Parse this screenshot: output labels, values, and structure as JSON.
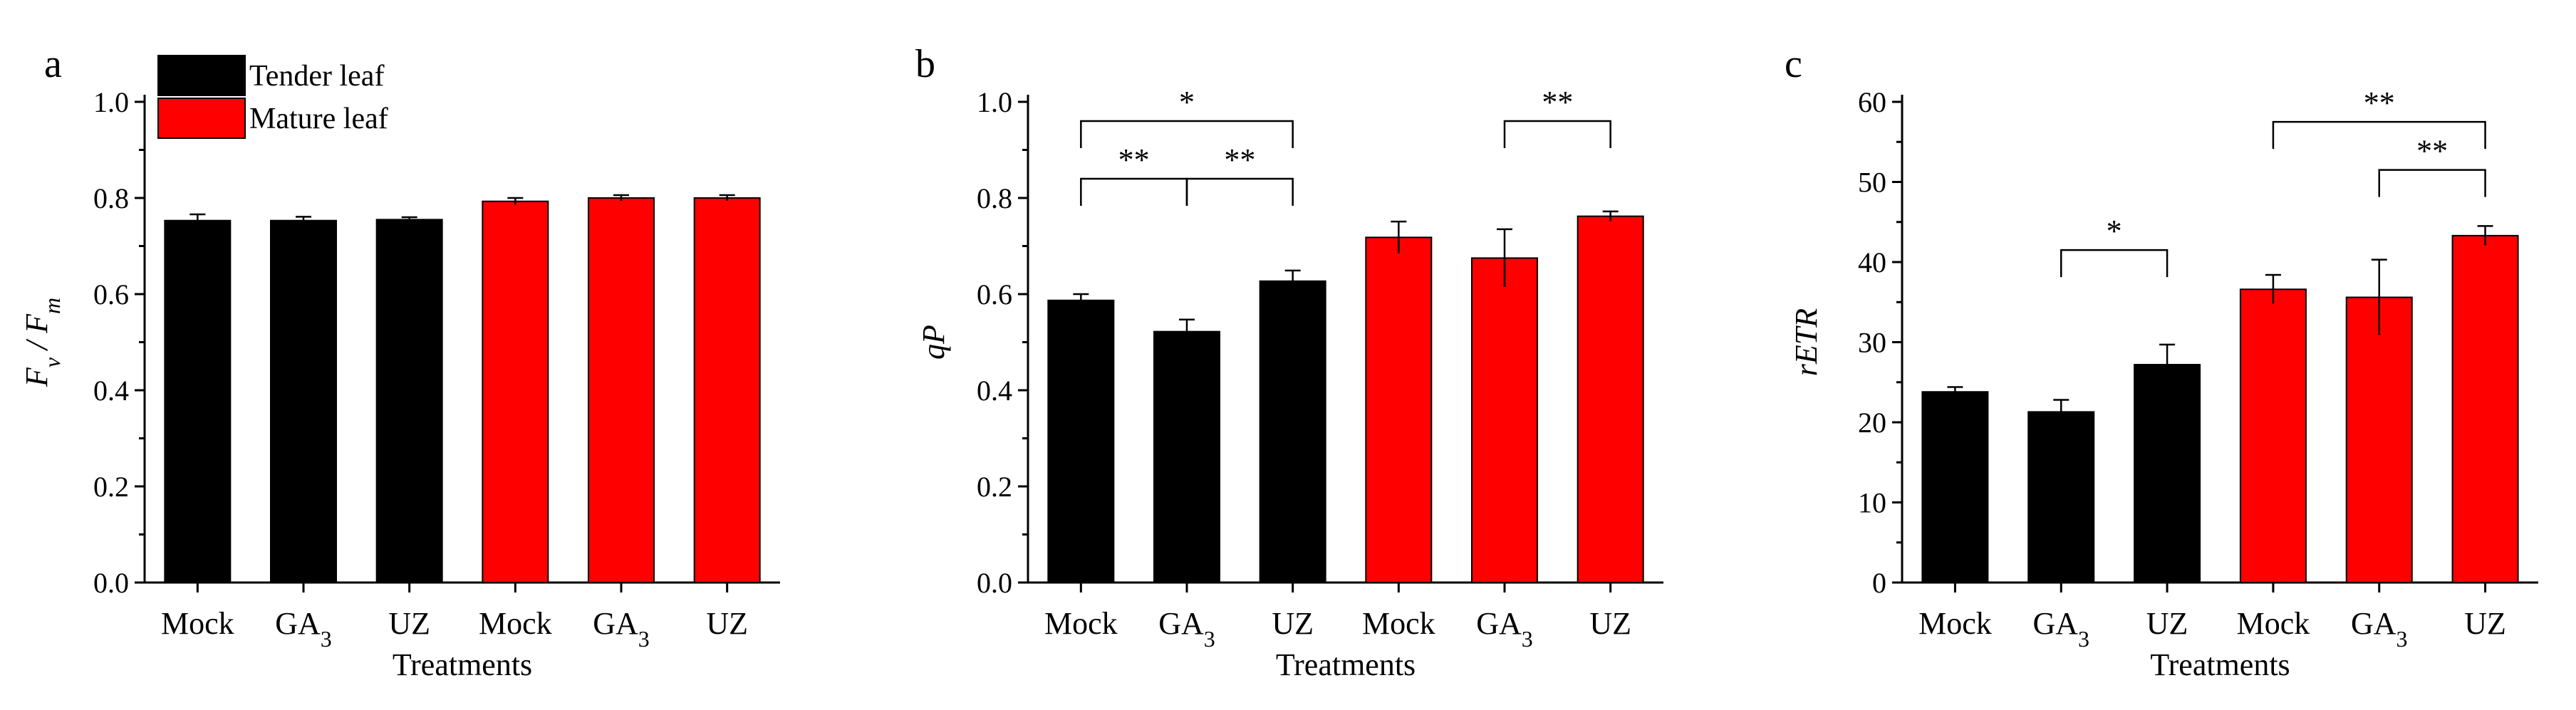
{
  "figure": {
    "legend": [
      {
        "label": "Tender leaf",
        "color": "#000000"
      },
      {
        "label": "Mature leaf",
        "color": "#ff0000"
      }
    ]
  },
  "chart_data": [
    {
      "type": "bar",
      "panel_label": "a",
      "title": "",
      "xlabel": "Treatments",
      "ylabel": "Fv / Fm",
      "ylim": [
        0,
        1.0
      ],
      "yticks": [
        "0.0",
        "0.2",
        "0.4",
        "0.6",
        "0.8",
        "1.0"
      ],
      "categories": [
        "Mock",
        "GA3",
        "UZ",
        "Mock",
        "GA3",
        "UZ"
      ],
      "series_of_bar": [
        "Tender leaf",
        "Tender leaf",
        "Tender leaf",
        "Mature leaf",
        "Mature leaf",
        "Mature leaf"
      ],
      "values": [
        0.753,
        0.753,
        0.755,
        0.793,
        0.8,
        0.8
      ],
      "errors": [
        0.013,
        0.008,
        0.005,
        0.007,
        0.006,
        0.006
      ],
      "significance": []
    },
    {
      "type": "bar",
      "panel_label": "b",
      "title": "",
      "xlabel": "Treatments",
      "ylabel": "qP",
      "ylim": [
        0,
        1.0
      ],
      "yticks": [
        "0.0",
        "0.2",
        "0.4",
        "0.6",
        "0.8",
        "1.0"
      ],
      "categories": [
        "Mock",
        "GA3",
        "UZ",
        "Mock",
        "GA3",
        "UZ"
      ],
      "series_of_bar": [
        "Tender leaf",
        "Tender leaf",
        "Tender leaf",
        "Mature leaf",
        "Mature leaf",
        "Mature leaf"
      ],
      "values": [
        0.587,
        0.522,
        0.627,
        0.718,
        0.675,
        0.762
      ],
      "errors": [
        0.013,
        0.025,
        0.022,
        0.033,
        0.06,
        0.01
      ],
      "significance": [
        {
          "from": 0,
          "to": 2,
          "level": 0.96,
          "label": "*"
        },
        {
          "from": 0,
          "to": 1,
          "level": 0.84,
          "label": "**"
        },
        {
          "from": 1,
          "to": 2,
          "level": 0.84,
          "label": "**"
        },
        {
          "from": 4,
          "to": 5,
          "level": 0.96,
          "label": "**"
        }
      ]
    },
    {
      "type": "bar",
      "panel_label": "c",
      "title": "",
      "xlabel": "Treatments",
      "ylabel": "rETR",
      "ylim": [
        0,
        60
      ],
      "yticks": [
        "0",
        "10",
        "20",
        "30",
        "40",
        "50",
        "60"
      ],
      "categories": [
        "Mock",
        "GA3",
        "UZ",
        "Mock",
        "GA3",
        "UZ"
      ],
      "series_of_bar": [
        "Tender leaf",
        "Tender leaf",
        "Tender leaf",
        "Mature leaf",
        "Mature leaf",
        "Mature leaf"
      ],
      "values": [
        23.8,
        21.3,
        27.2,
        36.6,
        35.6,
        43.3
      ],
      "errors": [
        0.6,
        1.5,
        2.5,
        1.8,
        4.7,
        1.2
      ],
      "significance": [
        {
          "from": 1,
          "to": 2,
          "level": 41.5,
          "label": "*"
        },
        {
          "from": 3,
          "to": 5,
          "level": 57.5,
          "label": "**"
        },
        {
          "from": 4,
          "to": 5,
          "level": 51.5,
          "label": "**"
        }
      ]
    }
  ]
}
